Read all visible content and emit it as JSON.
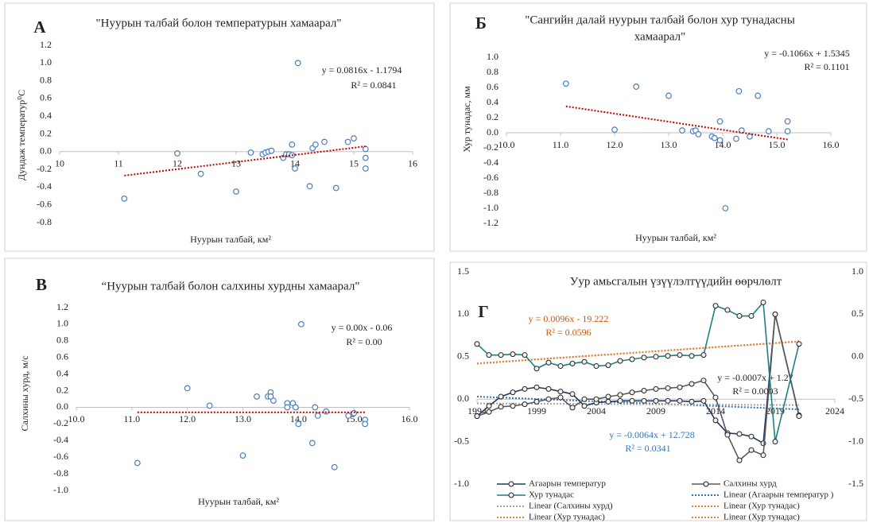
{
  "chart_data": [
    {
      "type": "scatter",
      "label": "A",
      "title": "\"Нуурын талбай болон температурын хамаарал\"",
      "x_label": "Нуурын талбай, км²",
      "y_label": "Дундаж температур⁰С",
      "xlim": [
        10,
        16
      ],
      "xticks": [
        10,
        11,
        12,
        13,
        14,
        15,
        16
      ],
      "ylim": [
        -0.8,
        1.2
      ],
      "yticks": [
        -0.8,
        -0.6,
        -0.4,
        -0.2,
        {
          "value": 0,
          "label": "0.0"
        },
        0.2,
        0.4,
        0.6,
        0.8,
        {
          "value": 1,
          "label": "1.0"
        },
        1.2
      ],
      "color": "#4a7ebb",
      "grid": false,
      "x": [
        11.1,
        12.0,
        12.4,
        13.0,
        13.25,
        13.45,
        13.5,
        13.55,
        13.6,
        13.8,
        13.85,
        13.9,
        13.95,
        13.95,
        14.0,
        14.05,
        14.25,
        14.3,
        14.35,
        14.5,
        14.7,
        14.9,
        15.0,
        15.2,
        15.2,
        15.2
      ],
      "values": [
        -0.53,
        -0.02,
        -0.25,
        -0.45,
        -0.01,
        -0.03,
        -0.01,
        0.0,
        0.01,
        -0.07,
        -0.03,
        -0.03,
        0.08,
        -0.04,
        -0.19,
        1.0,
        -0.39,
        0.04,
        0.08,
        0.11,
        -0.41,
        0.11,
        0.15,
        0.03,
        -0.07,
        -0.19
      ],
      "trendline": {
        "color": "#c00000",
        "x": [
          11.1,
          15.2
        ],
        "values": [
          -0.27,
          0.06
        ],
        "equation": "y = 0.0816x - 1.1794",
        "r2": "R² = 0.0841"
      }
    },
    {
      "type": "scatter",
      "label": "Б",
      "title": [
        "\"Сангийн далай нуурын талбай болон хур тунадасны",
        "хамаарал\""
      ],
      "x_label": "Нуурын талбай, км²",
      "y_label": "Хур тунадас, мм",
      "xlim": [
        10,
        16
      ],
      "xticks": [
        {
          "value": 10,
          "label": "10.0"
        },
        {
          "value": 11,
          "label": "11.0"
        },
        {
          "value": 12,
          "label": "12.0"
        },
        {
          "value": 13,
          "label": "13.0"
        },
        {
          "value": 14,
          "label": "14.0"
        },
        {
          "value": 15,
          "label": "15.0"
        },
        {
          "value": 16,
          "label": "16.0"
        }
      ],
      "ylim": [
        -1.2,
        1.0
      ],
      "yticks": [
        -1.2,
        {
          "value": -1,
          "label": "-1.0"
        },
        -0.8,
        -0.6,
        -0.4,
        -0.2,
        {
          "value": 0,
          "label": "0.0"
        },
        0.2,
        0.4,
        0.6,
        0.8,
        {
          "value": 1,
          "label": "1.0"
        }
      ],
      "color": "#4a7ebb",
      "grid": false,
      "x": [
        11.1,
        12.0,
        12.4,
        13.0,
        13.25,
        13.45,
        13.5,
        13.55,
        13.8,
        13.85,
        13.95,
        13.95,
        14.05,
        14.25,
        14.3,
        14.35,
        14.5,
        14.65,
        14.85,
        15.2,
        15.2
      ],
      "values": [
        0.65,
        0.04,
        0.61,
        0.49,
        0.03,
        0.02,
        0.03,
        -0.02,
        -0.05,
        -0.07,
        -0.1,
        0.15,
        -1.0,
        -0.08,
        0.55,
        0.03,
        -0.05,
        0.49,
        0.02,
        0.15,
        0.02
      ],
      "trendline": {
        "color": "#c00000",
        "x": [
          11.1,
          15.2
        ],
        "values": [
          0.35,
          -0.09
        ],
        "equation": "y = -0.1066x + 1.5345",
        "r2": "R² = 0.1101"
      }
    },
    {
      "type": "scatter",
      "label": "В",
      "title": "“Нуурын талбай болон салхины хурдны хамаарал\"",
      "x_label": "Нуурын талбай, км²",
      "y_label": "Салхины хурд, м/с",
      "xlim": [
        10,
        16
      ],
      "xticks": [
        {
          "value": 10,
          "label": "10.0"
        },
        {
          "value": 11,
          "label": "11.0"
        },
        {
          "value": 12,
          "label": "12.0"
        },
        {
          "value": 13,
          "label": "13.0"
        },
        {
          "value": 14,
          "label": "14.0"
        },
        {
          "value": 15,
          "label": "15.0"
        },
        {
          "value": 16,
          "label": "16.0"
        }
      ],
      "ylim": [
        -1.0,
        1.2
      ],
      "yticks": [
        {
          "value": -1,
          "label": "-1.0"
        },
        -0.8,
        -0.6,
        -0.4,
        -0.2,
        {
          "value": 0,
          "label": "0.0"
        },
        0.2,
        0.4,
        0.6,
        0.8,
        {
          "value": 1,
          "label": "1.0"
        },
        1.2
      ],
      "color": "#4a7ebb",
      "grid": false,
      "x": [
        11.1,
        12.0,
        12.4,
        13.0,
        13.25,
        13.45,
        13.5,
        13.5,
        13.55,
        13.8,
        13.8,
        13.9,
        13.95,
        14.0,
        14.05,
        14.25,
        14.3,
        14.35,
        14.5,
        14.65,
        14.9,
        15.0,
        15.2,
        15.2
      ],
      "values": [
        -0.67,
        0.23,
        0.02,
        -0.58,
        0.13,
        0.13,
        0.18,
        0.13,
        0.08,
        0.05,
        0.0,
        0.05,
        0.0,
        -0.2,
        1.0,
        -0.43,
        0.0,
        -0.1,
        -0.05,
        -0.72,
        -0.1,
        -0.07,
        -0.15,
        -0.2
      ],
      "trendline": {
        "color": "#c00000",
        "x": [
          11.1,
          15.2
        ],
        "values": [
          -0.06,
          -0.06
        ],
        "equation": "y = 0.00x - 0.06",
        "r2": "R² = 0.00"
      }
    },
    {
      "type": "line",
      "label": "Г",
      "title": "Уур амьсгалын үзүүлэлтүүдийн өөрчлөлт",
      "xlim": [
        1994,
        2024
      ],
      "xticks": [
        1994,
        1999,
        2004,
        2009,
        2014,
        2019,
        2024
      ],
      "ylim": [
        -1.0,
        1.5
      ],
      "yticks": [
        {
          "value": -1,
          "label": "-1.0"
        },
        -0.5,
        {
          "value": 0,
          "label": "0.0"
        },
        0.5,
        {
          "value": 1,
          "label": "1.0"
        },
        1.5
      ],
      "y2lim": [
        -1.5,
        1.0
      ],
      "y2ticks": [
        -1.5,
        {
          "value": -1,
          "label": "-1.0"
        },
        -0.5,
        {
          "value": 0,
          "label": "0.0"
        },
        0.5,
        {
          "value": 1,
          "label": "1.0"
        }
      ],
      "grid": false,
      "x": [
        1994,
        1995,
        1996,
        1997,
        1998,
        1999,
        2000,
        2001,
        2002,
        2003,
        2004,
        2005,
        2006,
        2007,
        2008,
        2009,
        2010,
        2011,
        2012,
        2013,
        2014,
        2015,
        2016,
        2017,
        2018,
        2019,
        2021
      ],
      "series": [
        {
          "name": "Агаарын температур",
          "color": "#1f3864",
          "values": [
            -0.2,
            -0.08,
            0.03,
            0.08,
            0.12,
            0.14,
            0.12,
            0.09,
            0.06,
            -0.08,
            -0.04,
            -0.03,
            -0.02,
            -0.02,
            -0.02,
            -0.02,
            -0.02,
            -0.02,
            -0.03,
            -0.02,
            -0.25,
            -0.4,
            -0.41,
            -0.44,
            -0.52,
            1.0,
            -0.19
          ]
        },
        {
          "name": "Салхины хурд",
          "color": "#595959",
          "axis": "y2",
          "values": [
            -0.7,
            -0.65,
            -0.59,
            -0.58,
            -0.56,
            -0.53,
            -0.5,
            -0.48,
            -0.6,
            -0.5,
            -0.5,
            -0.47,
            -0.45,
            -0.42,
            -0.4,
            -0.38,
            -0.37,
            -0.36,
            -0.32,
            -0.28,
            -0.48,
            -0.92,
            -1.22,
            -1.1,
            -1.16,
            0.5,
            -0.7
          ]
        },
        {
          "name": "Хур тунадас",
          "color": "#1f7f7f",
          "values": [
            0.65,
            0.52,
            0.52,
            0.53,
            0.52,
            0.36,
            0.43,
            0.39,
            0.42,
            0.44,
            0.39,
            0.4,
            0.45,
            0.47,
            0.49,
            0.5,
            0.51,
            0.52,
            0.51,
            0.52,
            1.1,
            1.05,
            0.98,
            0.98,
            1.14,
            -0.5,
            0.65
          ]
        }
      ],
      "trendlines": [
        {
          "name": "Linear (Агаарын температур )",
          "color": "#2e75b6",
          "x": [
            1994,
            2021
          ],
          "values": [
            0.03,
            -0.12
          ],
          "equation": "y = -0.0064x + 12.728",
          "r2": "R² = 0.0341"
        },
        {
          "name": "Linear (Салхины хурд)",
          "color": "#a5a5a5",
          "x": [
            1994,
            2021
          ],
          "values": [
            -0.05,
            -0.07
          ],
          "equation": "y = -0.0007x + 1.27",
          "r2": "R² = 0.0003"
        },
        {
          "name": "Linear (Хур тунадас)",
          "color": "#ed7d31",
          "x": [
            1994,
            2021
          ],
          "values": [
            0.42,
            0.68
          ],
          "equation": "y = 0.0096x - 19.222",
          "r2": "R² = 0.0596"
        },
        {
          "name": "Linear (Хур тунадас)",
          "color": "#ed7d31",
          "x": [
            1994,
            2021
          ],
          "values": [
            0.42,
            0.68
          ]
        },
        {
          "name": "Linear (Хур тунадас)",
          "color": "#ed7d31",
          "x": [
            1994,
            2021
          ],
          "values": [
            0.42,
            0.68
          ]
        }
      ]
    }
  ]
}
